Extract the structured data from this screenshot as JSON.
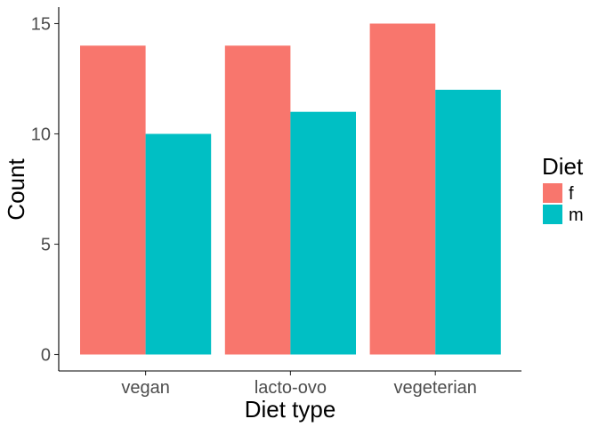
{
  "chart_data": {
    "type": "bar",
    "xlabel": "Diet type",
    "ylabel": "Count",
    "categories": [
      "vegan",
      "lacto-ovo",
      "vegeterian"
    ],
    "series": [
      {
        "name": "f",
        "values": [
          14,
          14,
          15
        ],
        "color": "#F8766D"
      },
      {
        "name": "m",
        "values": [
          10,
          11,
          12
        ],
        "color": "#00BFC4"
      }
    ],
    "y_ticks": [
      0,
      5,
      10,
      15
    ],
    "ylim": [
      0,
      15.75
    ],
    "grid": false,
    "legend": {
      "title": "Diet",
      "position": "right"
    }
  }
}
